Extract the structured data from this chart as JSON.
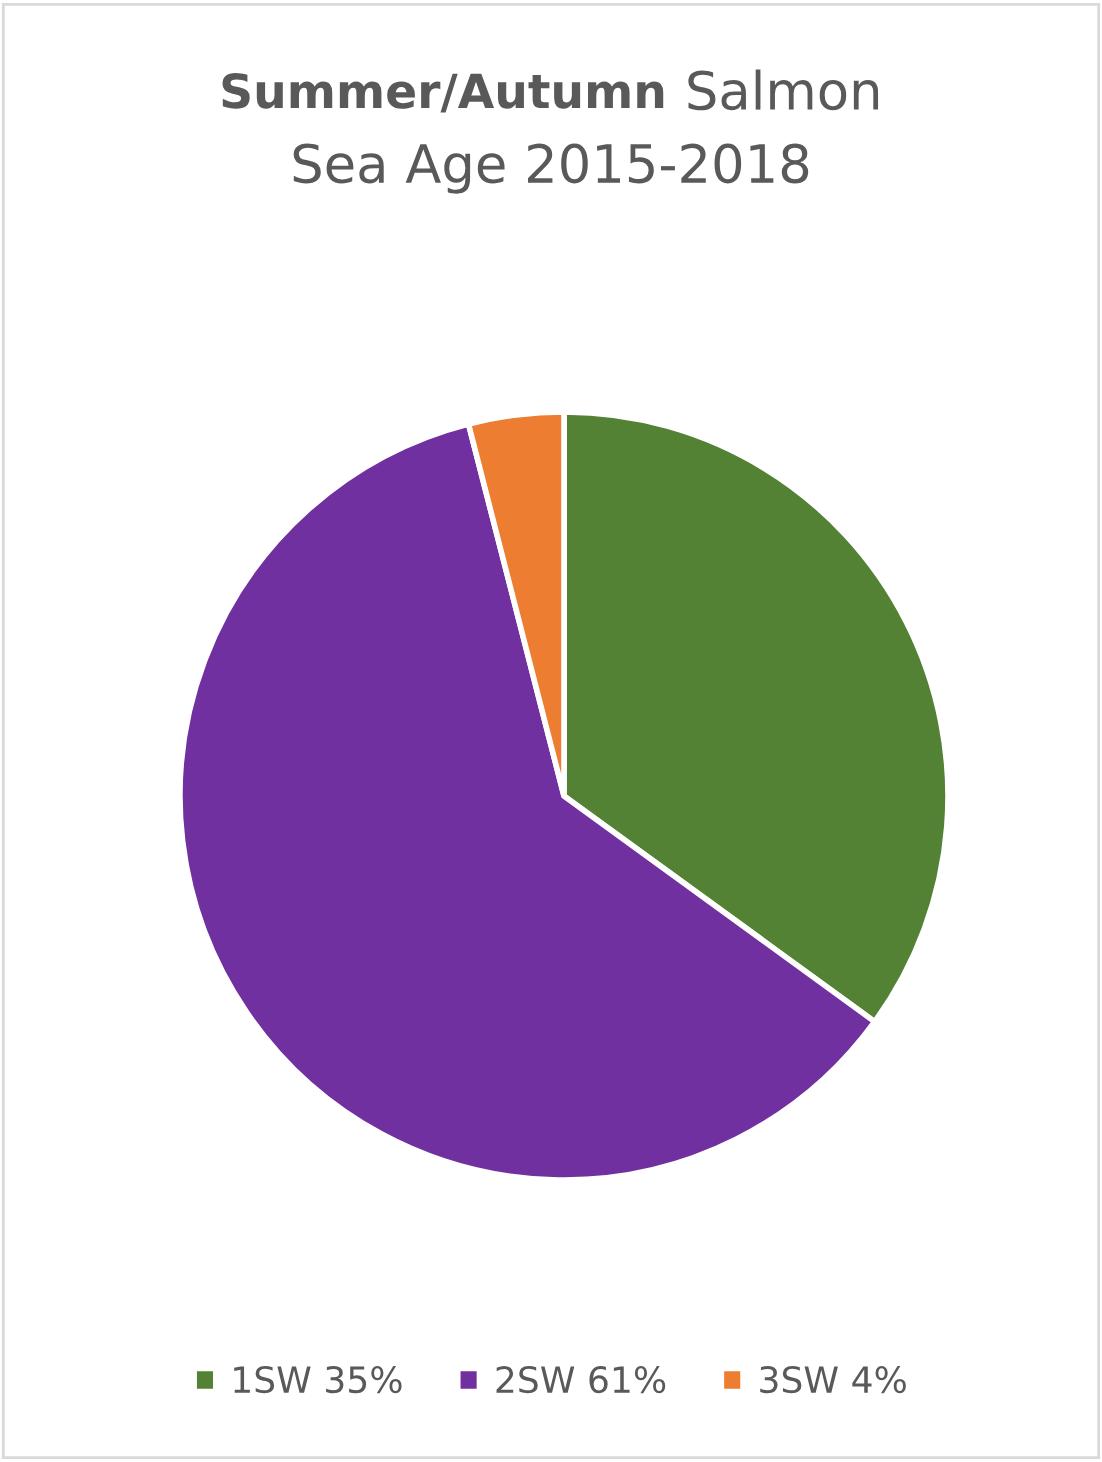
{
  "chart_data": {
    "type": "pie",
    "title": "Summer/Autumn Salmon\nSea Age 2015-2018",
    "categories": [
      "1SW",
      "2SW",
      "3SW"
    ],
    "values": [
      35,
      61,
      4
    ],
    "value_labels": [
      "35%",
      "61%",
      "4%"
    ],
    "colors": [
      "#548235",
      "#7030a0",
      "#ed7d31"
    ],
    "legend": "bottom"
  }
}
